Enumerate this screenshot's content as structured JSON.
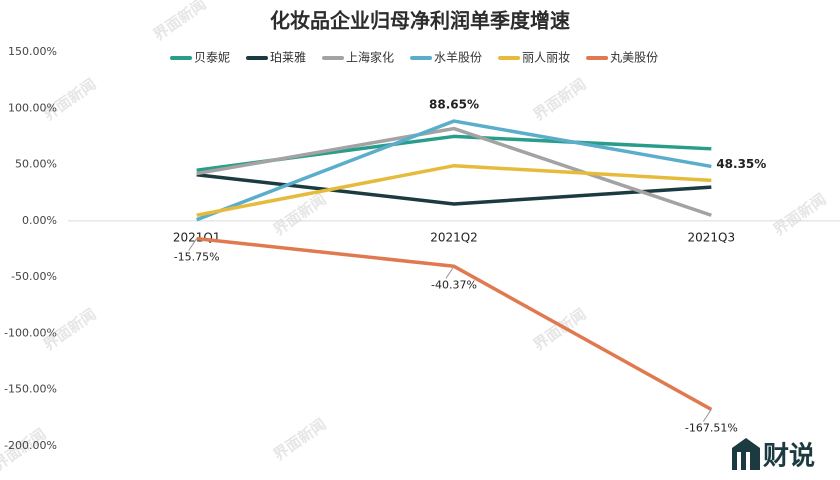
{
  "chart_data": {
    "type": "line",
    "title": "化妆品企业归母净利润单季度增速",
    "categories": [
      "2021Q1",
      "2021Q2",
      "2021Q3"
    ],
    "series": [
      {
        "name": "贝泰妮",
        "color": "#2a9d8a",
        "values": [
          45,
          75,
          64
        ],
        "value_labels": [
          null,
          null,
          null
        ]
      },
      {
        "name": "珀莱雅",
        "color": "#1c3b40",
        "values": [
          41,
          15,
          30
        ],
        "value_labels": [
          null,
          null,
          null
        ]
      },
      {
        "name": "上海家化",
        "color": "#a3a3a3",
        "values": [
          42,
          82,
          5
        ],
        "value_labels": [
          null,
          null,
          null
        ]
      },
      {
        "name": "水羊股份",
        "color": "#5aaecb",
        "values": [
          1,
          88.65,
          48.35
        ],
        "value_labels": [
          null,
          "88.65%",
          "48.35%"
        ]
      },
      {
        "name": "丽人丽妆",
        "color": "#e6bb3c",
        "values": [
          5,
          49,
          36
        ],
        "value_labels": [
          null,
          null,
          null
        ]
      },
      {
        "name": "丸美股份",
        "color": "#e0794f",
        "values": [
          -15.75,
          -40.37,
          -167.51
        ],
        "value_labels": [
          "-15.75%",
          "-40.37%",
          "-167.51%"
        ]
      }
    ],
    "ylim": [
      -200,
      150
    ],
    "yticks": [
      {
        "value": -200,
        "label": "-200.00%"
      },
      {
        "value": -150,
        "label": "-150.00%"
      },
      {
        "value": -100,
        "label": "-100.00%"
      },
      {
        "value": -50,
        "label": "-50.00%"
      },
      {
        "value": 0,
        "label": "0.00%"
      },
      {
        "value": 50,
        "label": "50.00%"
      },
      {
        "value": 100,
        "label": "100.00%"
      },
      {
        "value": 150,
        "label": "150.00%"
      }
    ],
    "watermark": "界面新闻",
    "logo": "财说"
  }
}
